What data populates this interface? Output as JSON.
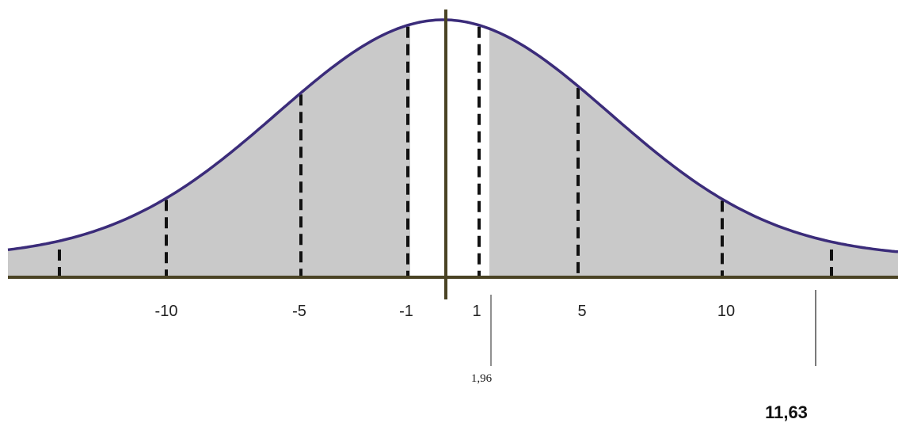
{
  "axis_labels": [
    "-10",
    "-5",
    "-1",
    "1",
    "5",
    "10"
  ],
  "annotations": {
    "critical_value": "1,96",
    "statistic": "11,63"
  }
}
